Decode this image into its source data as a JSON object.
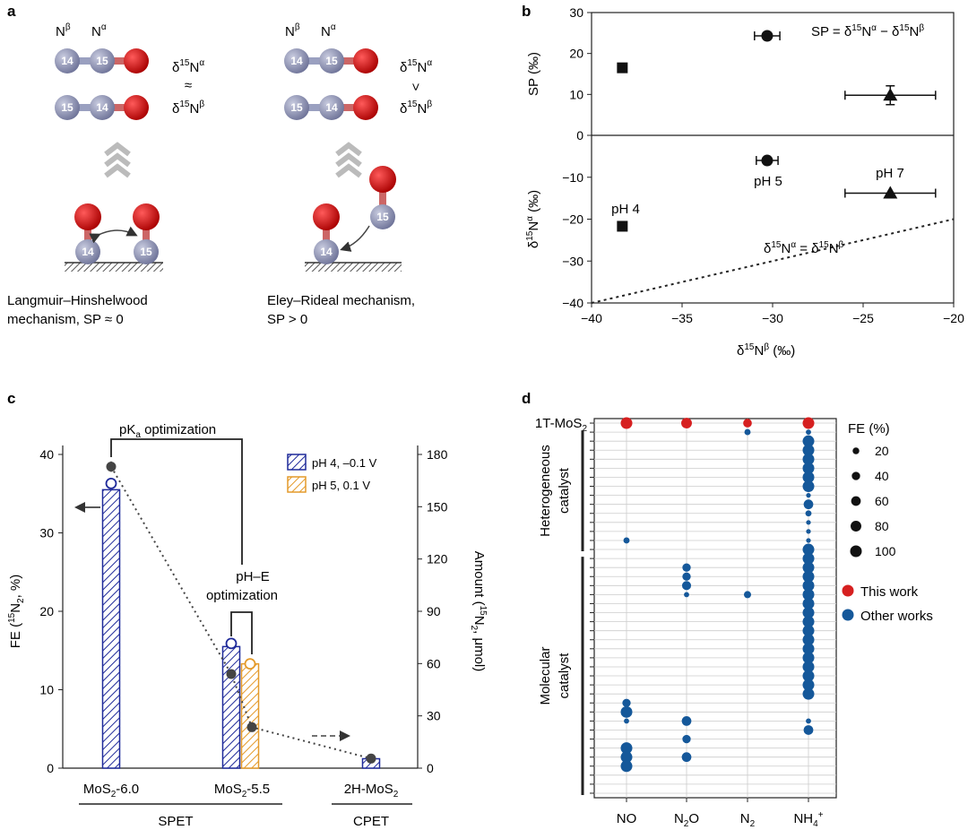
{
  "panels": {
    "a": {
      "label": "a",
      "left": {
        "n_beta": "N",
        "n_beta_sup": "β",
        "n_alpha": "N",
        "n_alpha_sup": "α",
        "mol1": [
          "14",
          "15"
        ],
        "mol2": [
          "15",
          "14"
        ],
        "rel_top": "δ",
        "rel_top_sup": "15",
        "rel_top_main": "N",
        "rel_top_sub": "α",
        "relation": "≈",
        "rel_bot": "δ",
        "rel_bot_sup": "15",
        "rel_bot_main": "N",
        "rel_bot_sub": "β",
        "surface_atoms": [
          "14",
          "15"
        ],
        "caption_line1": "Langmuir–Hinshelwood",
        "caption_line2": "mechanism, SP ≈ 0"
      },
      "right": {
        "n_beta": "N",
        "n_beta_sup": "β",
        "n_alpha": "N",
        "n_alpha_sup": "α",
        "mol1": [
          "14",
          "15"
        ],
        "mol2": [
          "15",
          "14"
        ],
        "relation": ">",
        "surface_atom": "14",
        "incoming_atom": "15",
        "caption_line1": "Eley–Rideal mechanism,",
        "caption_line2": "SP > 0"
      }
    },
    "b": {
      "label": "b",
      "sp_formula": "SP = δ15Nα − δ15Nβ",
      "eq_formula": "δ15Nα = δ15Nβ",
      "ylabel_top": "SP (‰)",
      "ylabel_bot": "δ15Nα (‰)",
      "xlabel": "δ15Nβ (‰)",
      "point_labels": [
        "pH 4",
        "pH 5",
        "pH 7"
      ]
    },
    "c": {
      "label": "c",
      "ylabel_left": "FE (15N2, %)",
      "ylabel_right": "Amount (15N2, μmol)",
      "annot_pka": "pKa optimization",
      "annot_phe_line1": "pH–E",
      "annot_phe_line2": "optimization",
      "legend": [
        "pH 4, –0.1 V",
        "pH 5, 0.1 V"
      ],
      "groups": [
        "SPET",
        "CPET"
      ]
    },
    "d": {
      "label": "d",
      "top_row": "1T-MoS2",
      "group_hetero_line1": "Heterogeneous",
      "group_hetero_line2": "catalyst",
      "group_mol_line1": "Molecular",
      "group_mol_line2": "catalyst",
      "legend_title": "FE (%)",
      "size_legend": [
        "20",
        "40",
        "60",
        "80",
        "100"
      ],
      "color_legend": [
        "This work",
        "Other works"
      ]
    }
  },
  "colors": {
    "nitrogen": "#8e93b4",
    "oxygen": "#d50000",
    "blue_bar": "#1f2a9a",
    "orange_bar": "#e49a2a",
    "this_work": "#d62020",
    "other_works": "#15589a"
  },
  "chart_data": [
    {
      "type": "scatter",
      "title": "",
      "xlabel": "δ15Nβ (‰)",
      "xlim": [
        -40,
        -20
      ],
      "xticks": [
        -40,
        -35,
        -30,
        -25,
        -20
      ],
      "top": {
        "ylabel": "SP (‰)",
        "ylim": [
          0,
          30
        ],
        "yticks": [
          0,
          10,
          20,
          30
        ],
        "points": [
          {
            "x": -38.3,
            "y": 16.5,
            "marker": "square",
            "xerr": 0,
            "yerr": 0
          },
          {
            "x": -30.3,
            "y": 24.3,
            "marker": "circle",
            "xerr": 0.7,
            "yerr": 0
          },
          {
            "x": -23.5,
            "y": 9.8,
            "marker": "triangle",
            "xerr": 2.5,
            "yerr": 2.3
          }
        ]
      },
      "bottom": {
        "ylabel": "δ15Nα (‰)",
        "ylim": [
          -40,
          0
        ],
        "yticks": [
          -40,
          -30,
          -20,
          -10,
          0
        ],
        "points": [
          {
            "label": "pH 4",
            "x": -38.3,
            "y": -21.7,
            "marker": "square",
            "xerr": 0
          },
          {
            "label": "pH 5",
            "x": -30.3,
            "y": -6.0,
            "marker": "circle",
            "xerr": 0.6
          },
          {
            "label": "pH 7",
            "x": -23.5,
            "y": -13.8,
            "marker": "triangle",
            "xerr": 2.5
          }
        ],
        "reference_line": {
          "x": [
            -40,
            -20
          ],
          "y": [
            -40,
            -20
          ],
          "style": "dotted"
        }
      }
    },
    {
      "type": "bar",
      "title": "",
      "categories": [
        "MoS2-6.0",
        "MoS2-5.5",
        "2H-MoS2"
      ],
      "ylabel": "FE (15N2, %)",
      "ylim": [
        0,
        40
      ],
      "yticks": [
        0,
        10,
        20,
        30,
        40
      ],
      "ylabel_right": "Amount (15N2, μmol)",
      "ylim_right": [
        0,
        180
      ],
      "yticks_right": [
        0,
        30,
        60,
        90,
        120,
        150,
        180
      ],
      "series": [
        {
          "name": "pH 4, –0.1 V",
          "values": [
            35.5,
            15.5,
            1.2
          ],
          "circles": [
            36.3,
            15.9,
            null
          ]
        },
        {
          "name": "pH 5, 0.1 V",
          "values": [
            null,
            13.3,
            null
          ],
          "circles": [
            null,
            13.3,
            null
          ]
        }
      ],
      "amount_points": [
        {
          "x": "MoS2-6.0",
          "value": 173,
          "err": 3
        },
        {
          "x": "MoS2-5.5 (pH 4)",
          "value": 54
        },
        {
          "x": "MoS2-5.5 (pH 5)",
          "value": 23.5
        },
        {
          "x": "2H-MoS2",
          "value": 5.5
        }
      ]
    },
    {
      "type": "scatter",
      "title": "",
      "categories": [
        "NO",
        "N2O",
        "N2",
        "NH4+"
      ],
      "rows": 42,
      "note": "bubble size = FE (%); row 0 = 1T-MoS2 (this work)",
      "points": [
        {
          "row": 0,
          "cat": "NO",
          "fe": 100,
          "group": "This work"
        },
        {
          "row": 0,
          "cat": "N2O",
          "fe": 80,
          "group": "This work"
        },
        {
          "row": 0,
          "cat": "N2",
          "fe": 45,
          "group": "This work"
        },
        {
          "row": 0,
          "cat": "NH4+",
          "fe": 100,
          "group": "This work"
        },
        {
          "row": 1,
          "cat": "NH4+",
          "fe": 8,
          "group": "Other works"
        },
        {
          "row": 1,
          "cat": "N2",
          "fe": 15,
          "group": "Other works"
        },
        {
          "row": 2,
          "cat": "NH4+",
          "fe": 100,
          "group": "Other works"
        },
        {
          "row": 3,
          "cat": "NH4+",
          "fe": 100,
          "group": "Other works"
        },
        {
          "row": 4,
          "cat": "NH4+",
          "fe": 100,
          "group": "Other works"
        },
        {
          "row": 5,
          "cat": "NH4+",
          "fe": 100,
          "group": "Other works"
        },
        {
          "row": 6,
          "cat": "NH4+",
          "fe": 100,
          "group": "Other works"
        },
        {
          "row": 7,
          "cat": "NH4+",
          "fe": 100,
          "group": "Other works"
        },
        {
          "row": 8,
          "cat": "NH4+",
          "fe": 5,
          "group": "Other works"
        },
        {
          "row": 9,
          "cat": "NH4+",
          "fe": 60,
          "group": "Other works"
        },
        {
          "row": 10,
          "cat": "NH4+",
          "fe": 15,
          "group": "Other works"
        },
        {
          "row": 11,
          "cat": "NH4+",
          "fe": 5,
          "group": "Other works"
        },
        {
          "row": 12,
          "cat": "NH4+",
          "fe": 5,
          "group": "Other works"
        },
        {
          "row": 13,
          "cat": "NH4+",
          "fe": 5,
          "group": "Other works"
        },
        {
          "row": 13,
          "cat": "NO",
          "fe": 15,
          "group": "Other works"
        },
        {
          "row": 14,
          "cat": "NH4+",
          "fe": 100,
          "group": "Other works"
        },
        {
          "row": 15,
          "cat": "NH4+",
          "fe": 100,
          "group": "Other works"
        },
        {
          "row": 16,
          "cat": "NH4+",
          "fe": 100,
          "group": "Other works"
        },
        {
          "row": 16,
          "cat": "N2O",
          "fe": 40,
          "group": "Other works"
        },
        {
          "row": 17,
          "cat": "NH4+",
          "fe": 100,
          "group": "Other works"
        },
        {
          "row": 17,
          "cat": "N2O",
          "fe": 40,
          "group": "Other works"
        },
        {
          "row": 18,
          "cat": "NH4+",
          "fe": 100,
          "group": "Other works"
        },
        {
          "row": 18,
          "cat": "N2O",
          "fe": 50,
          "group": "Other works"
        },
        {
          "row": 19,
          "cat": "NH4+",
          "fe": 100,
          "group": "Other works"
        },
        {
          "row": 19,
          "cat": "N2O",
          "fe": 8,
          "group": "Other works"
        },
        {
          "row": 19,
          "cat": "N2",
          "fe": 25,
          "group": "Other works"
        },
        {
          "row": 20,
          "cat": "NH4+",
          "fe": 100,
          "group": "Other works"
        },
        {
          "row": 21,
          "cat": "NH4+",
          "fe": 100,
          "group": "Other works"
        },
        {
          "row": 22,
          "cat": "NH4+",
          "fe": 100,
          "group": "Other works"
        },
        {
          "row": 23,
          "cat": "NH4+",
          "fe": 100,
          "group": "Other works"
        },
        {
          "row": 24,
          "cat": "NH4+",
          "fe": 100,
          "group": "Other works"
        },
        {
          "row": 25,
          "cat": "NH4+",
          "fe": 100,
          "group": "Other works"
        },
        {
          "row": 26,
          "cat": "NH4+",
          "fe": 100,
          "group": "Other works"
        },
        {
          "row": 27,
          "cat": "NH4+",
          "fe": 100,
          "group": "Other works"
        },
        {
          "row": 28,
          "cat": "NH4+",
          "fe": 100,
          "group": "Other works"
        },
        {
          "row": 29,
          "cat": "NH4+",
          "fe": 100,
          "group": "Other works"
        },
        {
          "row": 30,
          "cat": "NH4+",
          "fe": 100,
          "group": "Other works"
        },
        {
          "row": 31,
          "cat": "NO",
          "fe": 40,
          "group": "Other works"
        },
        {
          "row": 32,
          "cat": "NO",
          "fe": 100,
          "group": "Other works"
        },
        {
          "row": 33,
          "cat": "NO",
          "fe": 8,
          "group": "Other works"
        },
        {
          "row": 33,
          "cat": "N2O",
          "fe": 60,
          "group": "Other works"
        },
        {
          "row": 33,
          "cat": "NH4+",
          "fe": 8,
          "group": "Other works"
        },
        {
          "row": 34,
          "cat": "NH4+",
          "fe": 60,
          "group": "Other works"
        },
        {
          "row": 35,
          "cat": "N2O",
          "fe": 40,
          "group": "Other works"
        },
        {
          "row": 36,
          "cat": "NO",
          "fe": 100,
          "group": "Other works"
        },
        {
          "row": 37,
          "cat": "NO",
          "fe": 100,
          "group": "Other works"
        },
        {
          "row": 37,
          "cat": "N2O",
          "fe": 60,
          "group": "Other works"
        },
        {
          "row": 38,
          "cat": "NO",
          "fe": 100,
          "group": "Other works"
        }
      ]
    }
  ]
}
